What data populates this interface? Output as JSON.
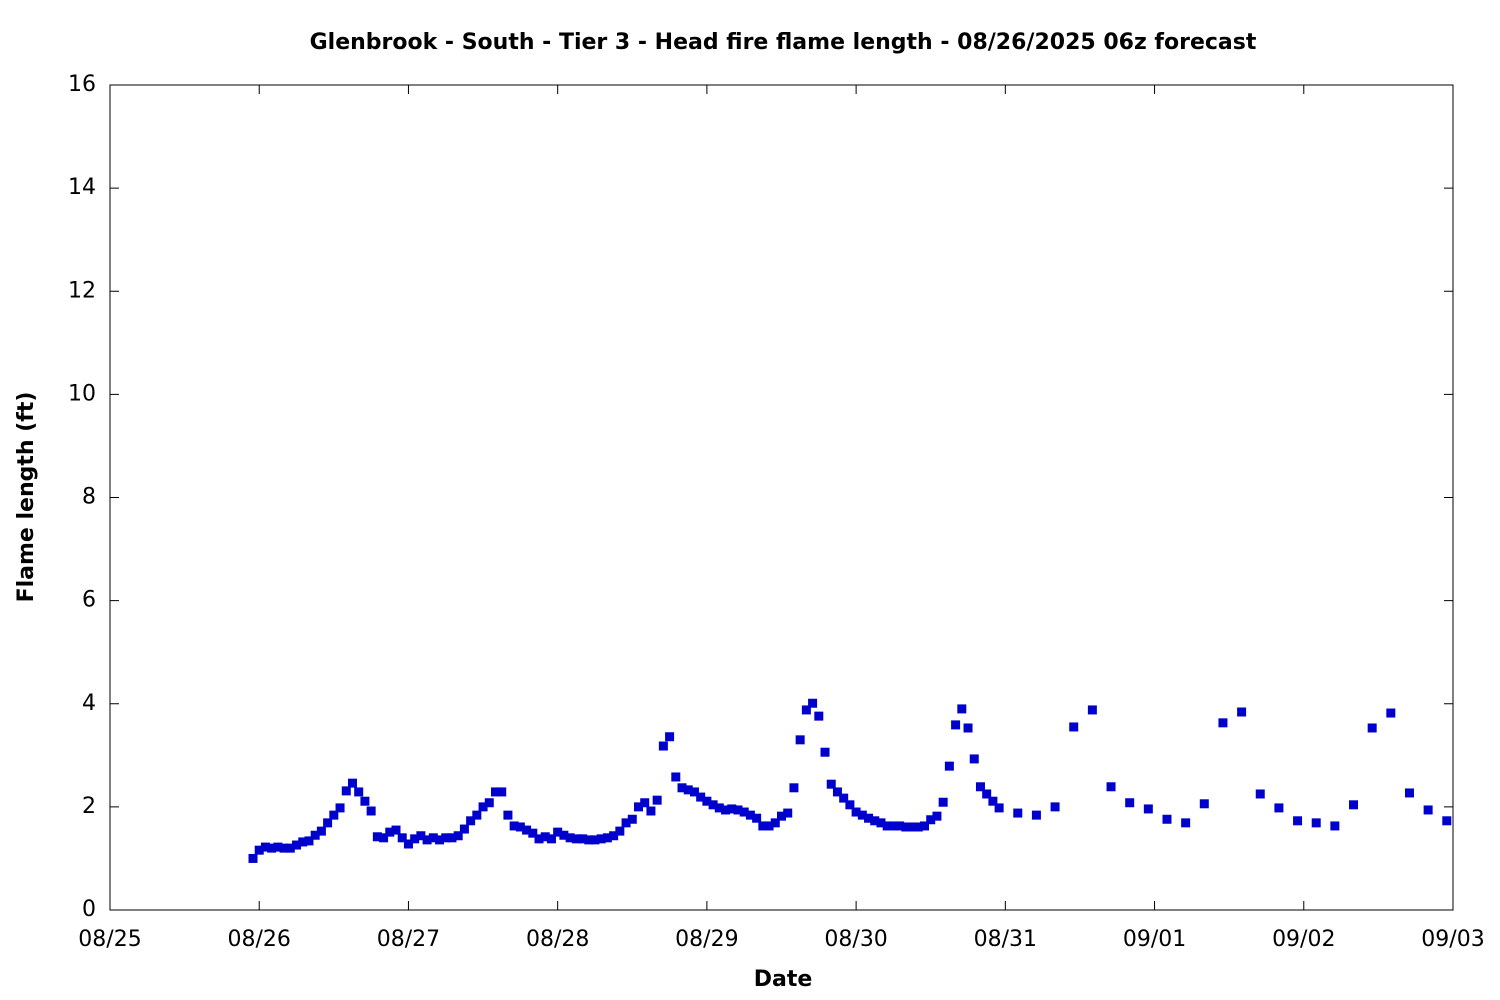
{
  "chart_data": {
    "type": "scatter",
    "title": "Glenbrook - South - Tier 3 - Head fire flame length - 08/26/2025 06z forecast",
    "x_label": "Date",
    "y_label": "Flame length (ft)",
    "color": "#0000cc",
    "xlim": [
      0,
      216
    ],
    "xticks": [
      {
        "value": 0,
        "label": "08/25"
      },
      {
        "value": 24,
        "label": "08/26"
      },
      {
        "value": 48,
        "label": "08/27"
      },
      {
        "value": 72,
        "label": "08/28"
      },
      {
        "value": 96,
        "label": "08/29"
      },
      {
        "value": 120,
        "label": "08/30"
      },
      {
        "value": 144,
        "label": "08/31"
      },
      {
        "value": 168,
        "label": "09/01"
      },
      {
        "value": 192,
        "label": "09/02"
      },
      {
        "value": 216,
        "label": "09/03"
      }
    ],
    "ylim": [
      0,
      16
    ],
    "yticks": [
      0,
      2,
      4,
      6,
      8,
      10,
      12,
      14,
      16
    ],
    "x": [
      23,
      24,
      25,
      26,
      27,
      28,
      29,
      30,
      31,
      32,
      33,
      34,
      35,
      36,
      37,
      38,
      39,
      40,
      41,
      42,
      43,
      44,
      45,
      46,
      47,
      48,
      49,
      50,
      51,
      52,
      53,
      54,
      55,
      56,
      57,
      58,
      59,
      60,
      61,
      62,
      63,
      64,
      65,
      66,
      67,
      68,
      69,
      70,
      71,
      72,
      73,
      74,
      75,
      76,
      77,
      78,
      79,
      80,
      81,
      82,
      83,
      84,
      85,
      86,
      87,
      88,
      89,
      90,
      91,
      92,
      93,
      94,
      95,
      96,
      97,
      98,
      99,
      100,
      101,
      102,
      103,
      104,
      105,
      106,
      107,
      108,
      109,
      110,
      111,
      112,
      113,
      114,
      115,
      116,
      117,
      118,
      119,
      120,
      121,
      122,
      123,
      124,
      125,
      126,
      127,
      128,
      129,
      130,
      131,
      132,
      133,
      134,
      135,
      136,
      137,
      138,
      139,
      140,
      141,
      142,
      143,
      146,
      149,
      152,
      155,
      158,
      161,
      164,
      167,
      170,
      173,
      176,
      179,
      182,
      185,
      188,
      191,
      194,
      197,
      200,
      203,
      206,
      209,
      212,
      215
    ],
    "values": [
      1.0,
      1.16,
      1.22,
      1.2,
      1.22,
      1.2,
      1.2,
      1.26,
      1.32,
      1.34,
      1.45,
      1.53,
      1.69,
      1.84,
      1.98,
      2.31,
      2.46,
      2.29,
      2.11,
      1.92,
      1.42,
      1.4,
      1.51,
      1.55,
      1.4,
      1.28,
      1.38,
      1.44,
      1.36,
      1.4,
      1.36,
      1.4,
      1.4,
      1.44,
      1.57,
      1.73,
      1.84,
      2.0,
      2.08,
      2.29,
      2.29,
      1.84,
      1.63,
      1.61,
      1.55,
      1.49,
      1.38,
      1.42,
      1.38,
      1.51,
      1.45,
      1.4,
      1.38,
      1.38,
      1.36,
      1.36,
      1.38,
      1.4,
      1.44,
      1.53,
      1.69,
      1.76,
      2.0,
      2.08,
      1.92,
      2.13,
      3.18,
      3.36,
      2.58,
      2.37,
      2.33,
      2.29,
      2.19,
      2.11,
      2.04,
      1.98,
      1.94,
      1.96,
      1.94,
      1.9,
      1.84,
      1.78,
      1.63,
      1.63,
      1.69,
      1.82,
      1.88,
      2.37,
      3.3,
      3.88,
      4.01,
      3.76,
      3.06,
      2.44,
      2.29,
      2.17,
      2.04,
      1.9,
      1.84,
      1.78,
      1.73,
      1.69,
      1.63,
      1.63,
      1.63,
      1.61,
      1.61,
      1.61,
      1.63,
      1.75,
      1.82,
      2.09,
      2.79,
      3.59,
      3.9,
      3.53,
      2.93,
      2.39,
      2.25,
      2.11,
      1.98,
      1.88,
      1.84,
      2.0,
      3.55,
      3.88,
      2.39,
      2.08,
      1.96,
      1.76,
      1.69,
      2.06,
      3.63,
      3.84,
      2.25,
      1.98,
      1.73,
      1.69,
      1.63,
      2.04,
      3.53,
      3.82,
      2.27,
      1.94,
      1.73
    ]
  }
}
